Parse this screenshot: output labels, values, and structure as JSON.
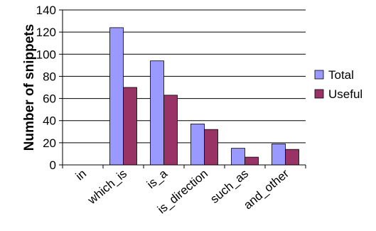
{
  "chart_data": {
    "type": "bar",
    "ylabel": "Number of snippets",
    "xlabel": "",
    "ylim": [
      0,
      140
    ],
    "yticks": [
      0,
      20,
      40,
      60,
      80,
      100,
      120,
      140
    ],
    "grid": true,
    "legend_position": "right",
    "categories": [
      "in",
      "which_is",
      "is_a",
      "is_direction",
      "such_as",
      "and_other"
    ],
    "series": [
      {
        "name": "Total",
        "color": "#9999ff",
        "values": [
          0,
          124,
          94,
          37,
          15,
          19
        ]
      },
      {
        "name": "Useful",
        "color": "#993366",
        "values": [
          0,
          70,
          63,
          32,
          7,
          14
        ]
      }
    ]
  }
}
